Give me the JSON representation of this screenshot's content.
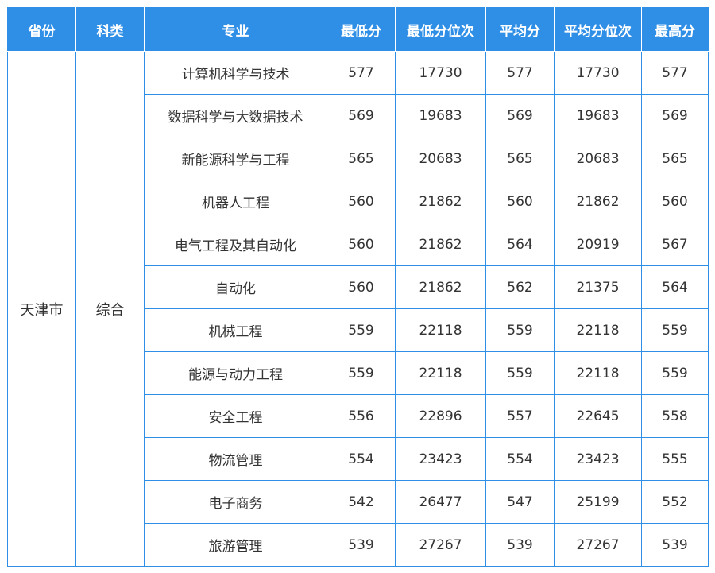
{
  "headers": [
    "省份",
    "科类",
    "专业",
    "最低分",
    "最低分位次",
    "平均分",
    "平均分位次",
    "最高分"
  ],
  "province": "天津市",
  "category": "综合",
  "rows": [
    {
      "major": "计算机科学与技术",
      "min": "577",
      "min_rank": "17730",
      "avg": "577",
      "avg_rank": "17730",
      "max": "577"
    },
    {
      "major": "数据科学与大数据技术",
      "min": "569",
      "min_rank": "19683",
      "avg": "569",
      "avg_rank": "19683",
      "max": "569"
    },
    {
      "major": "新能源科学与工程",
      "min": "565",
      "min_rank": "20683",
      "avg": "565",
      "avg_rank": "20683",
      "max": "565"
    },
    {
      "major": "机器人工程",
      "min": "560",
      "min_rank": "21862",
      "avg": "560",
      "avg_rank": "21862",
      "max": "560"
    },
    {
      "major": "电气工程及其自动化",
      "min": "560",
      "min_rank": "21862",
      "avg": "564",
      "avg_rank": "20919",
      "max": "567"
    },
    {
      "major": "自动化",
      "min": "560",
      "min_rank": "21862",
      "avg": "562",
      "avg_rank": "21375",
      "max": "564"
    },
    {
      "major": "机械工程",
      "min": "559",
      "min_rank": "22118",
      "avg": "559",
      "avg_rank": "22118",
      "max": "559"
    },
    {
      "major": "能源与动力工程",
      "min": "559",
      "min_rank": "22118",
      "avg": "559",
      "avg_rank": "22118",
      "max": "559"
    },
    {
      "major": "安全工程",
      "min": "556",
      "min_rank": "22896",
      "avg": "557",
      "avg_rank": "22645",
      "max": "558"
    },
    {
      "major": "物流管理",
      "min": "554",
      "min_rank": "23423",
      "avg": "554",
      "avg_rank": "23423",
      "max": "555"
    },
    {
      "major": "电子商务",
      "min": "542",
      "min_rank": "26477",
      "avg": "547",
      "avg_rank": "25199",
      "max": "552"
    },
    {
      "major": "旅游管理",
      "min": "539",
      "min_rank": "27267",
      "avg": "539",
      "avg_rank": "27267",
      "max": "539"
    }
  ]
}
